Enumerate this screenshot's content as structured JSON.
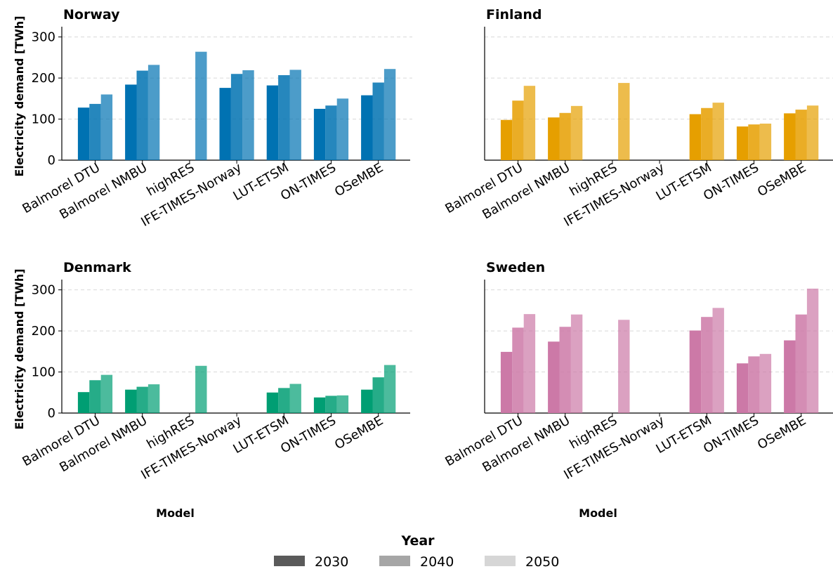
{
  "chart_data": [
    {
      "type": "bar",
      "title": "Norway",
      "ylabel": "Electricity demand [TWh]",
      "xlabel": "",
      "ylim": [
        0,
        325
      ],
      "yticks": [
        "0",
        "100",
        "200",
        "300"
      ],
      "color": "#0072b2",
      "categories": [
        "Balmorel DTU",
        "Balmorel NMBU",
        "highRES",
        "IFE-TIMES-Norway",
        "LUT-ETSM",
        "ON-TIMES",
        "OSeMBE"
      ],
      "series": [
        {
          "name": "2030",
          "values": [
            128,
            184,
            null,
            176,
            182,
            125,
            158
          ]
        },
        {
          "name": "2040",
          "values": [
            137,
            218,
            null,
            210,
            207,
            133,
            189
          ]
        },
        {
          "name": "2050",
          "values": [
            160,
            232,
            264,
            219,
            220,
            150,
            222
          ]
        }
      ]
    },
    {
      "type": "bar",
      "title": "Finland",
      "ylabel": "",
      "xlabel": "",
      "ylim": [
        0,
        325
      ],
      "yticks": [],
      "color": "#e69f00",
      "categories": [
        "Balmorel DTU",
        "Balmorel NMBU",
        "highRES",
        "IFE-TIMES-Norway",
        "LUT-ETSM",
        "ON-TIMES",
        "OSeMBE"
      ],
      "series": [
        {
          "name": "2030",
          "values": [
            98,
            104,
            null,
            null,
            112,
            82,
            114
          ]
        },
        {
          "name": "2040",
          "values": [
            145,
            115,
            null,
            null,
            127,
            87,
            123
          ]
        },
        {
          "name": "2050",
          "values": [
            181,
            132,
            188,
            null,
            140,
            89,
            133
          ]
        }
      ]
    },
    {
      "type": "bar",
      "title": "Denmark",
      "ylabel": "Electricity demand [TWh]",
      "xlabel": "Model",
      "ylim": [
        0,
        325
      ],
      "yticks": [
        "0",
        "100",
        "200",
        "300"
      ],
      "color": "#009e73",
      "categories": [
        "Balmorel DTU",
        "Balmorel NMBU",
        "highRES",
        "IFE-TIMES-Norway",
        "LUT-ETSM",
        "ON-TIMES",
        "OSeMBE"
      ],
      "series": [
        {
          "name": "2030",
          "values": [
            51,
            57,
            null,
            null,
            50,
            38,
            57
          ]
        },
        {
          "name": "2040",
          "values": [
            80,
            64,
            null,
            null,
            61,
            42,
            87
          ]
        },
        {
          "name": "2050",
          "values": [
            93,
            70,
            115,
            null,
            71,
            43,
            117
          ]
        }
      ]
    },
    {
      "type": "bar",
      "title": "Sweden",
      "ylabel": "",
      "xlabel": "Model",
      "ylim": [
        0,
        325
      ],
      "yticks": [],
      "color": "#cc79a7",
      "categories": [
        "Balmorel DTU",
        "Balmorel NMBU",
        "highRES",
        "IFE-TIMES-Norway",
        "LUT-ETSM",
        "ON-TIMES",
        "OSeMBE"
      ],
      "series": [
        {
          "name": "2030",
          "values": [
            149,
            174,
            null,
            null,
            201,
            121,
            177
          ]
        },
        {
          "name": "2040",
          "values": [
            208,
            210,
            null,
            null,
            234,
            138,
            240
          ]
        },
        {
          "name": "2050",
          "values": [
            241,
            240,
            227,
            null,
            256,
            144,
            303
          ]
        }
      ]
    }
  ],
  "legend": {
    "title": "Year",
    "entries": [
      "2030",
      "2040",
      "2050"
    ],
    "swatch_colors": [
      "#5a5a5a",
      "#a6a6a6",
      "#d6d6d6"
    ],
    "placement": "bottom-center"
  },
  "series_opacity": [
    1.0,
    0.85,
    0.7
  ],
  "grid": true
}
